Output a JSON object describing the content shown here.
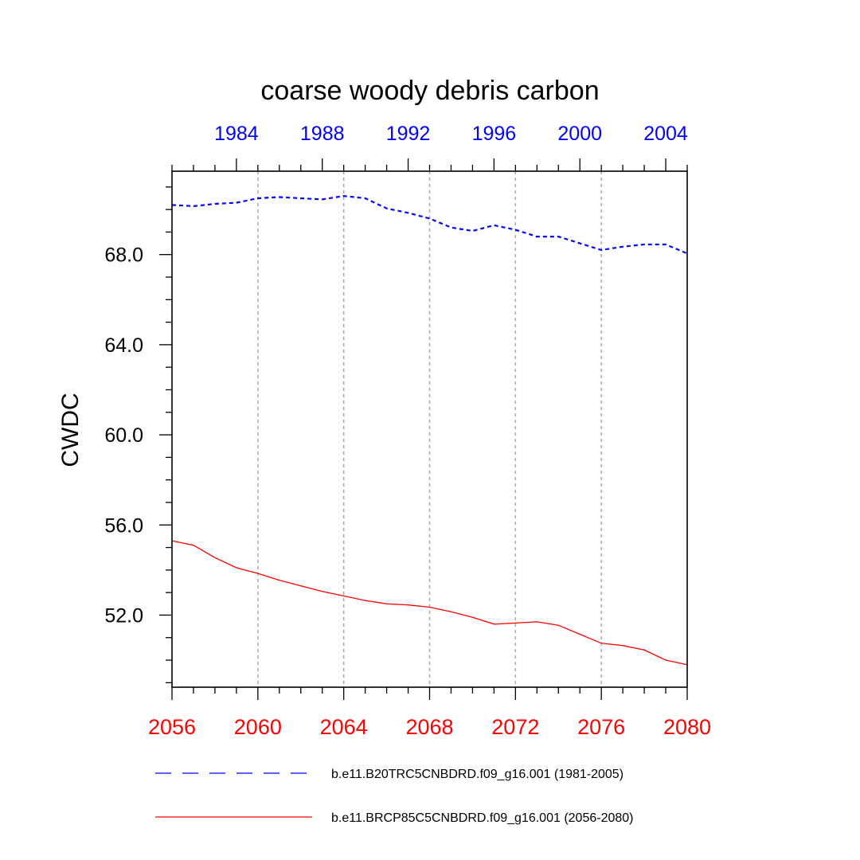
{
  "chart_data": {
    "type": "line",
    "title": "coarse woody debris carbon",
    "ylabel": "CWDC",
    "ylim": [
      48.8,
      71.7
    ],
    "yticks": [
      52.0,
      56.0,
      60.0,
      64.0,
      68.0
    ],
    "ytick_labels": [
      "52.0",
      "56.0",
      "60.0",
      "64.0",
      "68.0"
    ],
    "grid": "vertical dashed at major x ticks",
    "legend_position": "bottom",
    "x_bottom": {
      "range": [
        2056,
        2080
      ],
      "ticks": [
        2056,
        2060,
        2064,
        2068,
        2072,
        2076,
        2080
      ],
      "tick_labels": [
        "2056",
        "2060",
        "2064",
        "2068",
        "2072",
        "2076",
        "2080"
      ],
      "color": "#ff0000"
    },
    "x_top": {
      "range": [
        1981,
        2005
      ],
      "ticks": [
        1984,
        1988,
        1992,
        1996,
        2000,
        2004
      ],
      "tick_labels": [
        "1984",
        "1988",
        "1992",
        "1996",
        "2000",
        "2004"
      ],
      "color": "#0000ff"
    },
    "series": [
      {
        "name": "b.e11.B20TRC5CNBDRD.f09_g16.001 (1981-2005)",
        "axis": "top",
        "color": "#0000ff",
        "style": "dashed",
        "x": [
          1981,
          1982,
          1983,
          1984,
          1985,
          1986,
          1987,
          1988,
          1989,
          1990,
          1991,
          1992,
          1993,
          1994,
          1995,
          1996,
          1997,
          1998,
          1999,
          2000,
          2001,
          2002,
          2003,
          2004,
          2005
        ],
        "values": [
          70.2,
          70.15,
          70.25,
          70.3,
          70.5,
          70.55,
          70.5,
          70.45,
          70.6,
          70.5,
          70.05,
          69.85,
          69.6,
          69.2,
          69.05,
          69.3,
          69.1,
          68.8,
          68.8,
          68.5,
          68.2,
          68.35,
          68.45,
          68.45,
          68.05
        ]
      },
      {
        "name": "b.e11.BRCP85C5CNBDRD.f09_g16.001 (2056-2080)",
        "axis": "bottom",
        "color": "#ff0000",
        "style": "solid",
        "x": [
          2056,
          2057,
          2058,
          2059,
          2060,
          2061,
          2062,
          2063,
          2064,
          2065,
          2066,
          2067,
          2068,
          2069,
          2070,
          2071,
          2072,
          2073,
          2074,
          2075,
          2076,
          2077,
          2078,
          2079,
          2080
        ],
        "values": [
          55.3,
          55.1,
          54.55,
          54.1,
          53.85,
          53.55,
          53.3,
          53.05,
          52.85,
          52.65,
          52.5,
          52.45,
          52.35,
          52.15,
          51.9,
          51.6,
          51.65,
          51.7,
          51.55,
          51.15,
          50.75,
          50.65,
          50.45,
          50.0,
          49.8
        ]
      }
    ]
  }
}
